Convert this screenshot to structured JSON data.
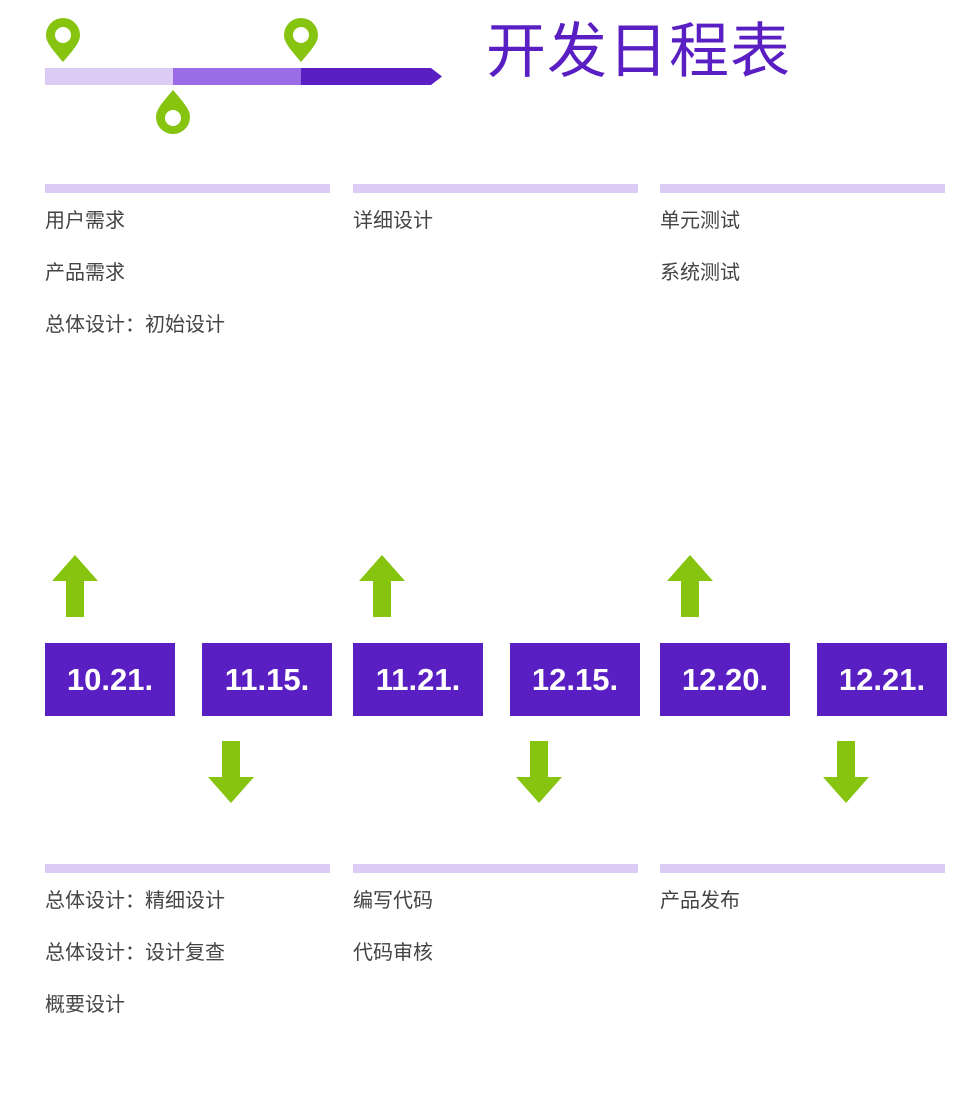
{
  "title": "开发日程表",
  "colors": {
    "accent": "#5a1fc2",
    "medium": "#9a6ce6",
    "light": "#dccbf5",
    "green": "#86c40f",
    "text": "#444444"
  },
  "top_groups": [
    {
      "items": [
        "用户需求",
        "产品需求",
        "总体设计：初始设计"
      ]
    },
    {
      "items": [
        "详细设计"
      ]
    },
    {
      "items": [
        "单元测试",
        "系统测试"
      ]
    }
  ],
  "bottom_groups": [
    {
      "items": [
        "总体设计：精细设计",
        "总体设计：设计复查",
        "概要设计"
      ]
    },
    {
      "items": [
        "编写代码",
        "代码审核"
      ]
    },
    {
      "items": [
        "产品发布"
      ]
    }
  ],
  "dates": [
    "10.21.",
    "11.15.",
    "11.21.",
    "12.15.",
    "12.20.",
    "12.21."
  ],
  "icons": {
    "pin": "location-pin-icon",
    "up": "arrow-up-icon",
    "down": "arrow-down-icon"
  }
}
